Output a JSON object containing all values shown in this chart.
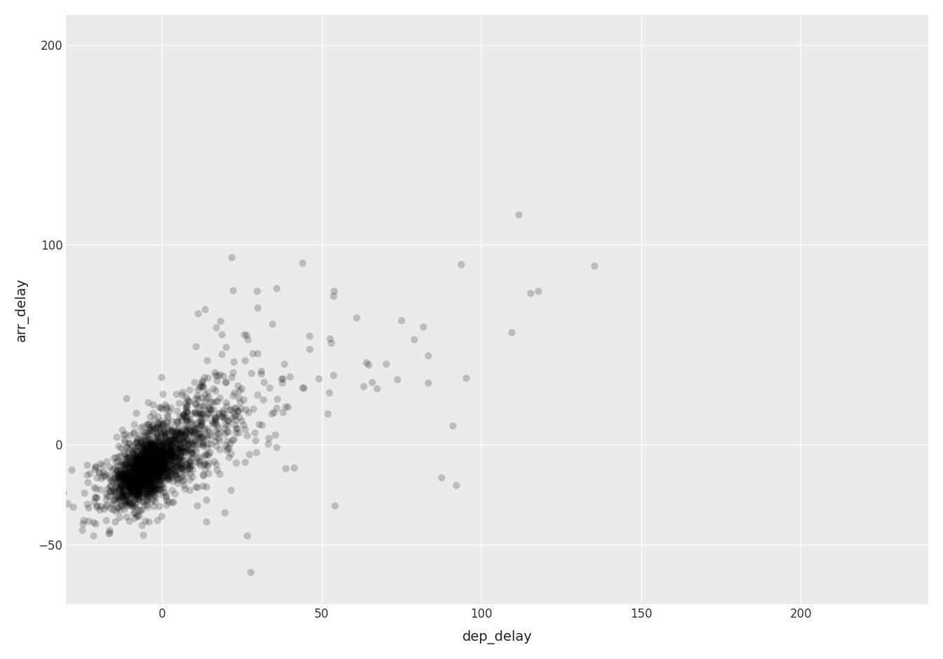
{
  "title": "",
  "xlabel": "dep_delay",
  "ylabel": "arr_delay",
  "xlim": [
    -30,
    240
  ],
  "ylim": [
    -80,
    215
  ],
  "xticks": [
    0,
    50,
    100,
    150,
    200
  ],
  "yticks": [
    -50,
    0,
    100,
    200
  ],
  "point_color": "#000000",
  "point_alpha": 0.2,
  "point_size": 55,
  "bg_color": "#EBEBEB",
  "grid_color": "#FFFFFF",
  "axis_label_fontsize": 14,
  "tick_fontsize": 12,
  "seed": 42,
  "n_main": 2000,
  "n_spread": 120
}
